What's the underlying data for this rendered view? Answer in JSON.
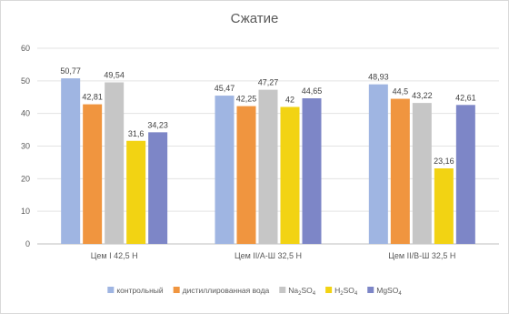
{
  "chart_data": {
    "type": "bar",
    "title": "Сжатие",
    "xlabel": "",
    "ylabel": "",
    "ylim": [
      0,
      60
    ],
    "yticks": [
      0,
      10,
      20,
      30,
      40,
      50,
      60
    ],
    "grid": true,
    "legend_position": "bottom",
    "categories": [
      "Цем I 42,5 Н",
      "Цем II/А-Ш 32,5 Н",
      "Цем II/В-Ш 32,5 Н"
    ],
    "series": [
      {
        "name": "контрольный",
        "legend": [
          {
            "t": "контрольный"
          }
        ],
        "color": "#9fb5e2",
        "values": [
          50.77,
          45.47,
          48.93
        ],
        "labels": [
          "50,77",
          "45,47",
          "48,93"
        ]
      },
      {
        "name": "дистиллированная вода",
        "legend": [
          {
            "t": "дистиллированная вода"
          }
        ],
        "color": "#f0953f",
        "values": [
          42.81,
          42.25,
          44.5
        ],
        "labels": [
          "42,81",
          "42,25",
          "44,5"
        ]
      },
      {
        "name": "Na2SO4",
        "legend": [
          {
            "t": "Na"
          },
          {
            "t": "2",
            "sub": true
          },
          {
            "t": "SO"
          },
          {
            "t": "4",
            "sub": true
          }
        ],
        "color": "#c6c6c6",
        "values": [
          49.54,
          47.27,
          43.22
        ],
        "labels": [
          "49,54",
          "47,27",
          "43,22"
        ]
      },
      {
        "name": "H2SO4",
        "legend": [
          {
            "t": "H"
          },
          {
            "t": "2",
            "sub": true
          },
          {
            "t": "SO"
          },
          {
            "t": "4",
            "sub": true
          }
        ],
        "color": "#f2d313",
        "values": [
          31.6,
          42,
          23.16
        ],
        "labels": [
          "31,6",
          "42",
          "23,16"
        ]
      },
      {
        "name": "MgSO4",
        "legend": [
          {
            "t": "MgSO"
          },
          {
            "t": "4",
            "sub": true
          }
        ],
        "color": "#7d86c7",
        "values": [
          34.23,
          44.65,
          42.61
        ],
        "labels": [
          "34,23",
          "44,65",
          "42,61"
        ]
      }
    ]
  }
}
